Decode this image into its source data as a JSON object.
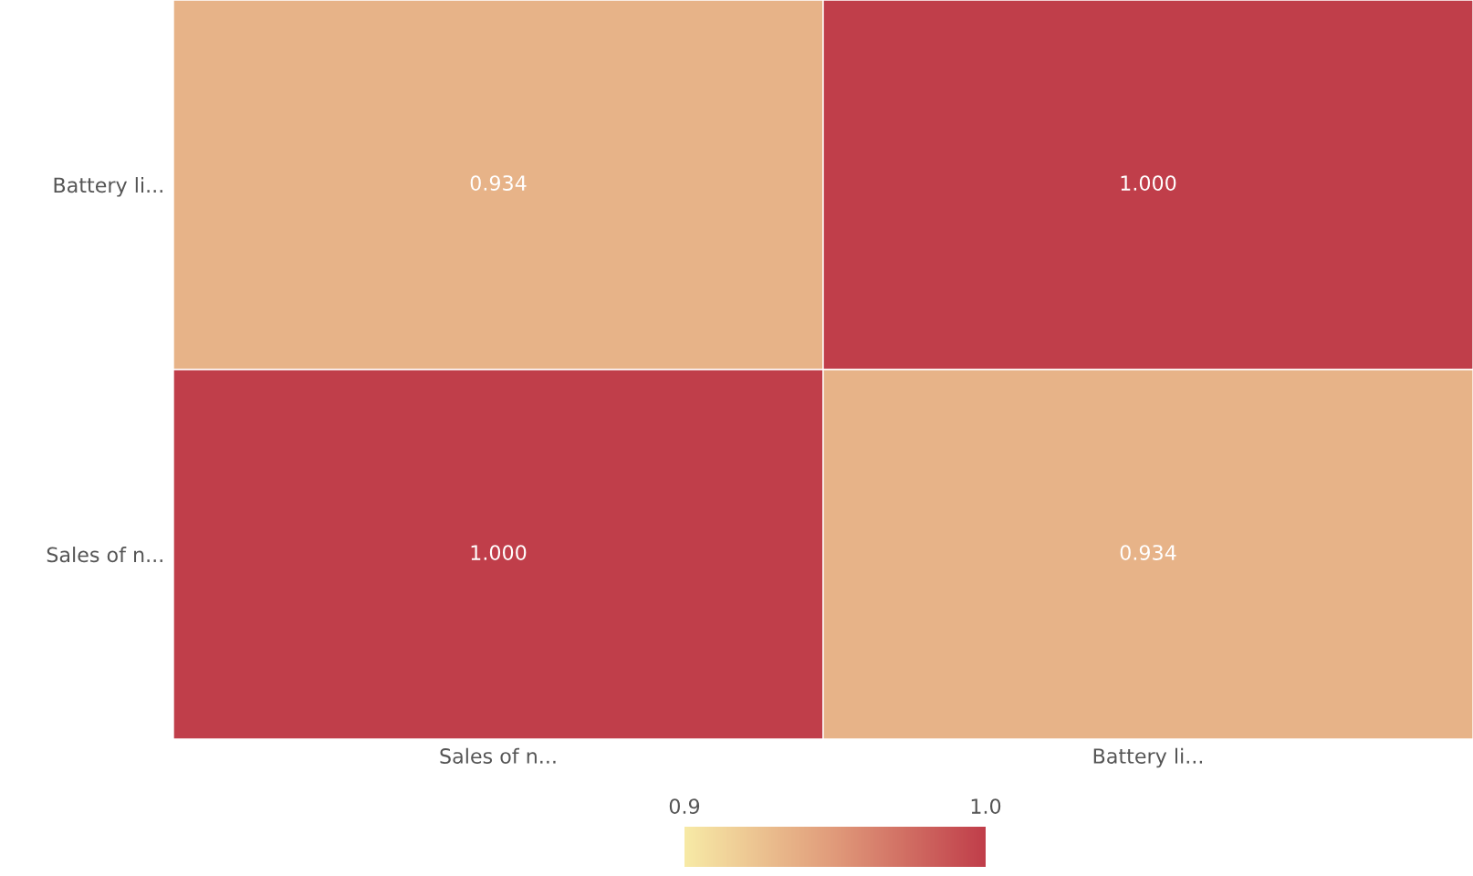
{
  "chart_data": {
    "type": "heatmap",
    "categories": [
      "Sales of n...",
      "Battery li..."
    ],
    "y_categories": [
      "Battery li...",
      "Sales of n..."
    ],
    "cells": [
      [
        0.934,
        1.0
      ],
      [
        1.0,
        0.934
      ]
    ],
    "cell_labels": [
      [
        "0.934",
        "1.000"
      ],
      [
        "1.000",
        "0.934"
      ]
    ],
    "colors": [
      "#f7eaa6",
      "#e09a7a",
      "#c03e4a"
    ],
    "clim": [
      0.9,
      1.0
    ],
    "cticks": [
      0.9,
      {
        "value": 1,
        "label": "1.0"
      }
    ]
  }
}
